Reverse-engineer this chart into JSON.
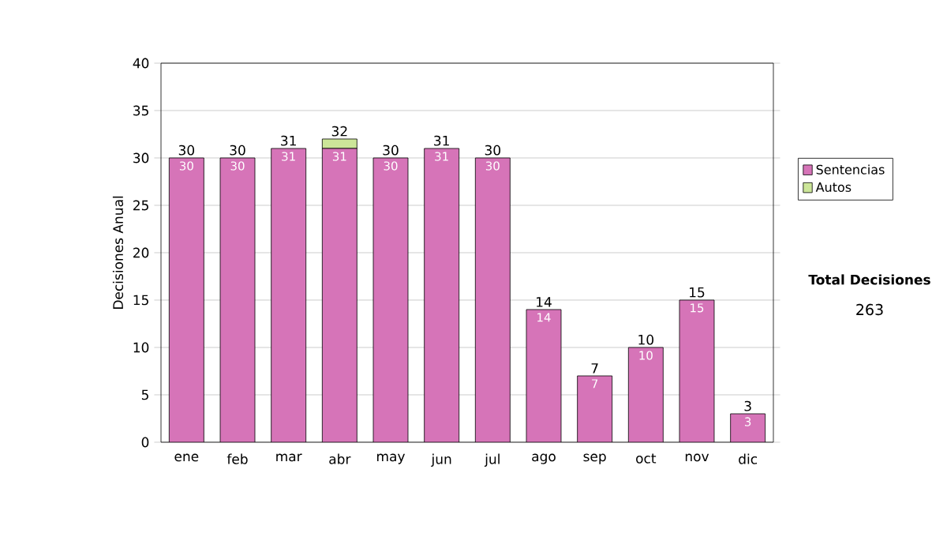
{
  "chart_data": {
    "type": "bar",
    "stacked": true,
    "ylabel": "Decisiones Anual",
    "categories": [
      "ene",
      "feb",
      "mar",
      "abr",
      "may",
      "jun",
      "jul",
      "ago",
      "sep",
      "oct",
      "nov",
      "dic"
    ],
    "series": [
      {
        "name": "Sentencias",
        "color": "#d674b8",
        "values": [
          30,
          30,
          31,
          31,
          30,
          31,
          30,
          14,
          7,
          10,
          15,
          3
        ],
        "value_labels": [
          "30",
          "30",
          "31",
          "31",
          "30",
          "31",
          "30",
          "14",
          "7",
          "10",
          "15",
          "3"
        ]
      },
      {
        "name": "Autos",
        "color": "#cce699",
        "values": [
          0,
          0,
          0,
          1,
          0,
          0,
          0,
          0,
          0,
          0,
          0,
          0
        ]
      }
    ],
    "totals": [
      "30",
      "30",
      "31",
      "32",
      "30",
      "31",
      "30",
      "14",
      "7",
      "10",
      "15",
      "3"
    ],
    "ylim": [
      0,
      40
    ],
    "yticks": [
      0,
      5,
      10,
      15,
      20,
      25,
      30,
      35,
      40
    ],
    "grid": "y",
    "legend": "right",
    "annotations": [
      "Total Decisiones",
      "263"
    ]
  }
}
